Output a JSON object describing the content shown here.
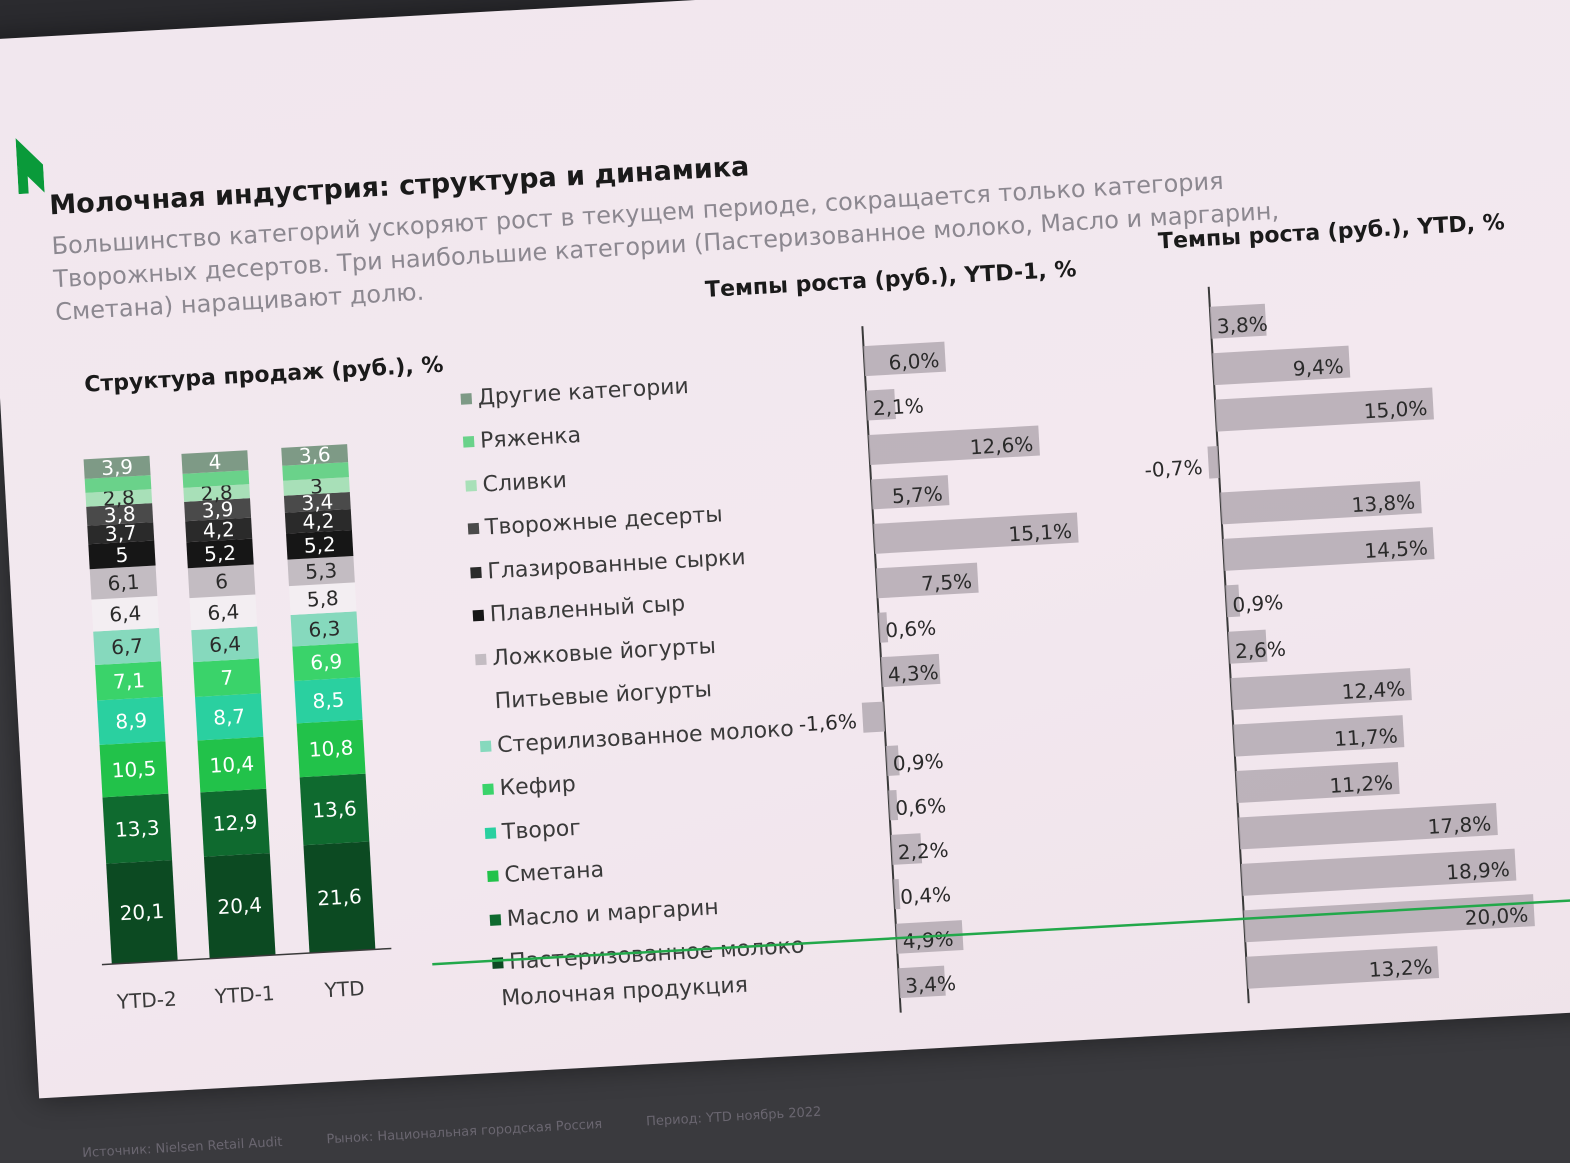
{
  "title": "Молочная индустрия: структура и динамика",
  "subtitle": "Большинство категорий ускоряют рост в текущем периоде, сокращается только категория Творожных десертов. Три наибольшие категории (Пастеризованное молоко, Масло и маргарин, Сметана) наращивают долю.",
  "structure_header": "Структура продаж (руб.), %",
  "ytd1_header": "Темпы роста (руб.), YTD-1, %",
  "ytd_header": "Темпы роста (руб.), YTD, %",
  "total_label": "Молочная продукция",
  "footer": {
    "source": "Источник: Nielsen Retail Audit",
    "market": "Рынок: Национальная городская Россия",
    "period": "Период: YTD ноябрь 2022"
  },
  "colors": {
    "brand_green": "#0a9a3a",
    "bar_gray": "#b3a9b1",
    "axis": "#3a3a3a",
    "total_line": "#22a84a"
  },
  "chart_data": [
    {
      "type": "bar",
      "stacked": true,
      "title": "Структура продаж (руб.), %",
      "categories": [
        "YTD-2",
        "YTD-1",
        "YTD"
      ],
      "series": [
        {
          "name": "Пастеризованное молоко",
          "color": "#0c4a22",
          "values": [
            20.1,
            20.4,
            21.6
          ]
        },
        {
          "name": "Масло и маргарин",
          "color": "#0f6a2f",
          "values": [
            13.3,
            12.9,
            13.6
          ]
        },
        {
          "name": "Сметана",
          "color": "#22c24a",
          "values": [
            10.5,
            10.4,
            10.8
          ]
        },
        {
          "name": "Творог",
          "color": "#2ad0a0",
          "values": [
            8.9,
            8.7,
            8.5
          ]
        },
        {
          "name": "Кефир",
          "color": "#3ad36a",
          "values": [
            7.1,
            7.0,
            6.9
          ]
        },
        {
          "name": "Стерилизованное молоко",
          "color": "#86d9bd",
          "values": [
            6.7,
            6.4,
            6.3
          ]
        },
        {
          "name": "Питьевые йогурты",
          "color": "#f3eef2",
          "values": [
            6.4,
            6.4,
            5.8
          ]
        },
        {
          "name": "Ложковые йогурты",
          "color": "#c3bcc2",
          "values": [
            6.1,
            6.0,
            5.3
          ]
        },
        {
          "name": "Плавленный сыр",
          "color": "#161616",
          "values": [
            5.0,
            5.2,
            5.2
          ]
        },
        {
          "name": "Глазированные сырки",
          "color": "#2a2a2a",
          "values": [
            3.7,
            4.2,
            4.2
          ]
        },
        {
          "name": "Творожные десерты",
          "color": "#4a4a4a",
          "values": [
            3.8,
            3.9,
            3.4
          ]
        },
        {
          "name": "Сливки",
          "color": "#a8e0b8",
          "values": [
            2.8,
            2.8,
            3.0
          ]
        },
        {
          "name": "Ряженка",
          "color": "#6ad28a",
          "values": [
            2.8,
            2.8,
            3.0
          ]
        },
        {
          "name": "Другие категории",
          "color": "#7e9a86",
          "values": [
            3.9,
            4.0,
            3.6
          ]
        }
      ],
      "display_labels": [
        [
          "20,1",
          "13,3",
          "10,5",
          "8,9",
          "7,1",
          "6,7",
          "6,4",
          "6,1",
          "5",
          "3,7",
          "3,8",
          "2,8",
          "",
          "3,9"
        ],
        [
          "20,4",
          "12,9",
          "10,4",
          "8,7",
          "7",
          "6,4",
          "6,4",
          "6",
          "5,2",
          "4,2",
          "3,9",
          "2,8",
          "",
          "4"
        ],
        [
          "21,6",
          "13,6",
          "10,8",
          "8,5",
          "6,9",
          "6,3",
          "5,8",
          "5,3",
          "5,2",
          "4,2",
          "3,4",
          "3",
          "",
          "3,6"
        ]
      ]
    },
    {
      "type": "bar",
      "orientation": "horizontal",
      "title": "Темпы роста (руб.), YTD-1, %",
      "categories": [
        "Другие категории",
        "Ряженка",
        "Сливки",
        "Творожные десерты",
        "Глазированные сырки",
        "Плавленный сыр",
        "Ложковые йогурты",
        "Питьевые йогурты",
        "Стерилизованное молоко",
        "Кефир",
        "Творог",
        "Сметана",
        "Масло и маргарин",
        "Пастеризованное молоко",
        "Молочная продукция"
      ],
      "values": [
        6.0,
        2.1,
        12.6,
        5.7,
        15.1,
        7.5,
        0.6,
        4.3,
        -1.6,
        0.9,
        0.6,
        2.2,
        0.4,
        4.9,
        3.4
      ],
      "labels": [
        "6,0%",
        "2,1%",
        "12,6%",
        "5,7%",
        "15,1%",
        "7,5%",
        "0,6%",
        "4,3%",
        "-1,6%",
        "0,9%",
        "0,6%",
        "2,2%",
        "0,4%",
        "4,9%",
        "3,4%"
      ]
    },
    {
      "type": "bar",
      "orientation": "horizontal",
      "title": "Темпы роста (руб.), YTD, %",
      "categories": [
        "Другие категории",
        "Ряженка",
        "Сливки",
        "Творожные десерты",
        "Глазированные сырки",
        "Плавленный сыр",
        "Ложковые йогурты",
        "Питьевые йогурты",
        "Стерилизованное молоко",
        "Кефир",
        "Творог",
        "Сметана",
        "Масло и маргарин",
        "Пастеризованное молоко",
        "Молочная продукция"
      ],
      "values": [
        3.8,
        9.4,
        15.0,
        -0.7,
        13.8,
        14.5,
        0.9,
        2.6,
        12.4,
        11.7,
        11.2,
        17.8,
        18.9,
        20.0,
        13.2
      ],
      "labels": [
        "3,8%",
        "9,4%",
        "15,0%",
        "-0,7%",
        "13,8%",
        "14,5%",
        "0,9%",
        "2,6%",
        "12,4%",
        "11,7%",
        "11,2%",
        "17,8%",
        "18,9%",
        "20,0%",
        "13,2%"
      ]
    }
  ]
}
